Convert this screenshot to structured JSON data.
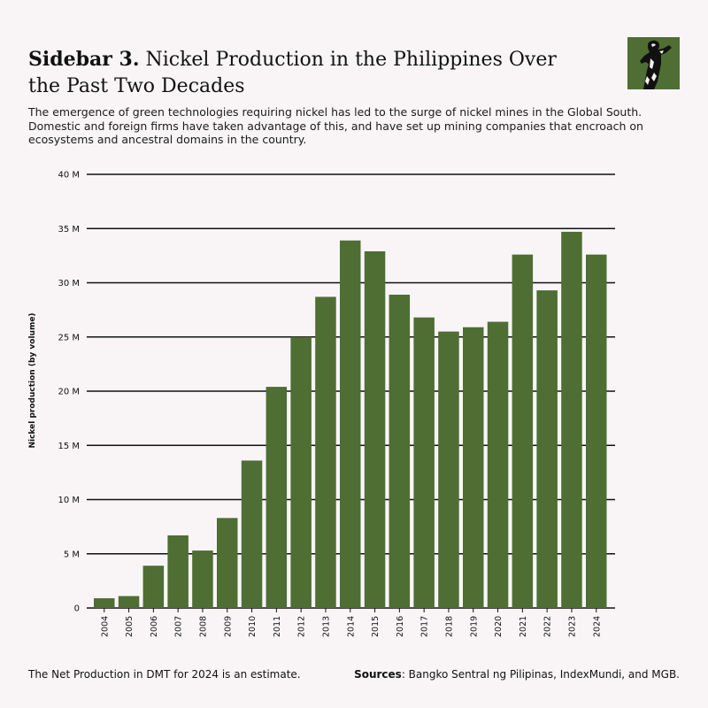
{
  "header": {
    "title_lead": "Sidebar 3.",
    "title_rest": " Nickel Production in the Philippines Over the Past Two Decades",
    "description": "The emergence of green technologies requiring nickel has led to the surge of nickel mines in the Global South. Domestic and foreign firms have taken advantage of this, and have set up mining companies that encroach on ecosystems and ancestral domains in the country."
  },
  "logo": {
    "icon": "statue-logo-icon",
    "background": "#4e6e34"
  },
  "chart_data": {
    "type": "bar",
    "ylabel": "Nickel production (by volume)",
    "xlabel": "",
    "ylim": [
      0,
      40000000
    ],
    "yticks": [
      {
        "value": 0,
        "label": "0"
      },
      {
        "value": 5000000,
        "label": "5 M"
      },
      {
        "value": 10000000,
        "label": "10 M"
      },
      {
        "value": 15000000,
        "label": "15 M"
      },
      {
        "value": 20000000,
        "label": "20 M"
      },
      {
        "value": 25000000,
        "label": "25 M"
      },
      {
        "value": 30000000,
        "label": "30 M"
      },
      {
        "value": 35000000,
        "label": "35 M"
      },
      {
        "value": 40000000,
        "label": "40 M"
      }
    ],
    "categories": [
      "2004",
      "2005",
      "2006",
      "2007",
      "2008",
      "2009",
      "2010",
      "2011",
      "2012",
      "2013",
      "2014",
      "2015",
      "2016",
      "2017",
      "2018",
      "2019",
      "2020",
      "2021",
      "2022",
      "2023",
      "2024"
    ],
    "values": [
      900000,
      1100000,
      3900000,
      6700000,
      5300000,
      8300000,
      13600000,
      20400000,
      25000000,
      28700000,
      33900000,
      32900000,
      28900000,
      26800000,
      25500000,
      25900000,
      26400000,
      32600000,
      29300000,
      34700000,
      32600000
    ],
    "bar_color": "#4e6e34",
    "grid": true
  },
  "footer": {
    "note": "The Net Production in DMT for 2024 is an estimate.",
    "sources_label": "Sources",
    "sources_text": ": Bangko Sentral ng Pilipinas, IndexMundi, and MGB."
  }
}
